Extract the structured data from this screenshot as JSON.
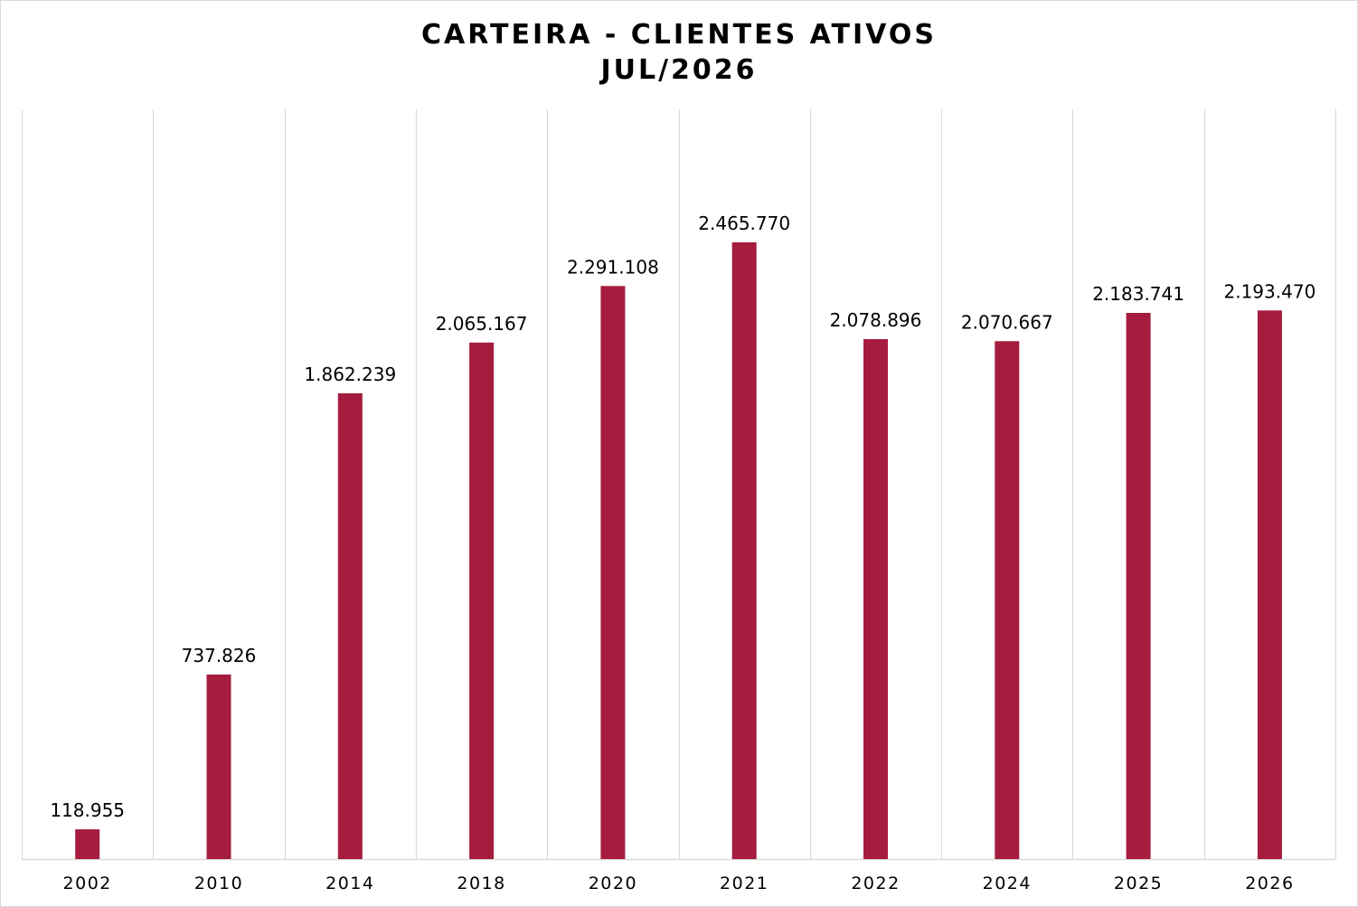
{
  "chart_data": {
    "type": "bar",
    "title": "CARTEIRA - CLIENTES ATIVOS",
    "subtitle": "JUL/2026",
    "categories": [
      "2002",
      "2010",
      "2014",
      "2018",
      "2020",
      "2021",
      "2022",
      "2024",
      "2025",
      "2026"
    ],
    "values": [
      118955,
      737826,
      1862239,
      2065167,
      2291108,
      2465770,
      2078896,
      2070667,
      2183741,
      2193470
    ],
    "data_labels": [
      "118.955",
      "737.826",
      "1.862.239",
      "2.065.167",
      "2.291.108",
      "2.465.770",
      "2.078.896",
      "2.070.667",
      "2.183.741",
      "2.193.470"
    ],
    "xlabel": "",
    "ylabel": "",
    "ylim": [
      0,
      3000000
    ],
    "grid": "vertical separators",
    "legend": "none",
    "colors": {
      "bar": "#A51C3F",
      "grid": "#d9d9d9"
    }
  }
}
